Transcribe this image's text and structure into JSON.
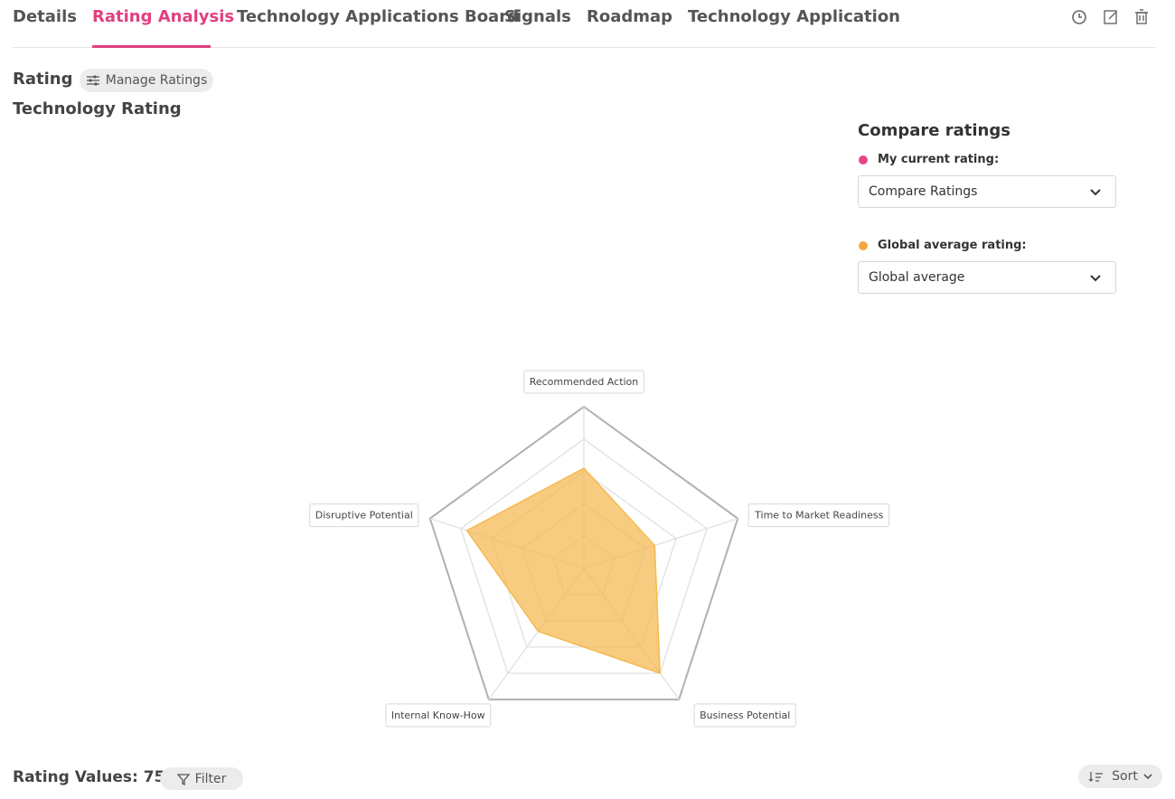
{
  "tabs": [
    "Details",
    "Rating Analysis",
    "Technology Applications Board",
    "Signals",
    "Roadmap",
    "Technology Application"
  ],
  "active_tab": 1,
  "rating": {
    "label": "Rating",
    "button": "Manage Ratings",
    "subtitle": "Technology Rating"
  },
  "compare": {
    "title": "Compare ratings",
    "items": [
      {
        "label": "My current rating:",
        "color": "#e8458b",
        "select": "Compare Ratings"
      },
      {
        "label": "Global average rating:",
        "color": "#f5a83a",
        "select": "Global average"
      }
    ]
  },
  "chart_data": {
    "type": "radar",
    "categories": [
      "Recommended Action",
      "Time to Market Readiness",
      "Business Potential",
      "Internal Know-How",
      "Disruptive Potential"
    ],
    "values": [
      3.1,
      2.3,
      4.0,
      2.4,
      3.8
    ],
    "color": "#f5b94f",
    "ylim": [
      0,
      5
    ],
    "yticks": [
      1,
      2,
      3,
      4,
      5
    ]
  },
  "footer": {
    "count": "Rating Values: 75",
    "filter": "Filter",
    "sort": "Sort"
  }
}
